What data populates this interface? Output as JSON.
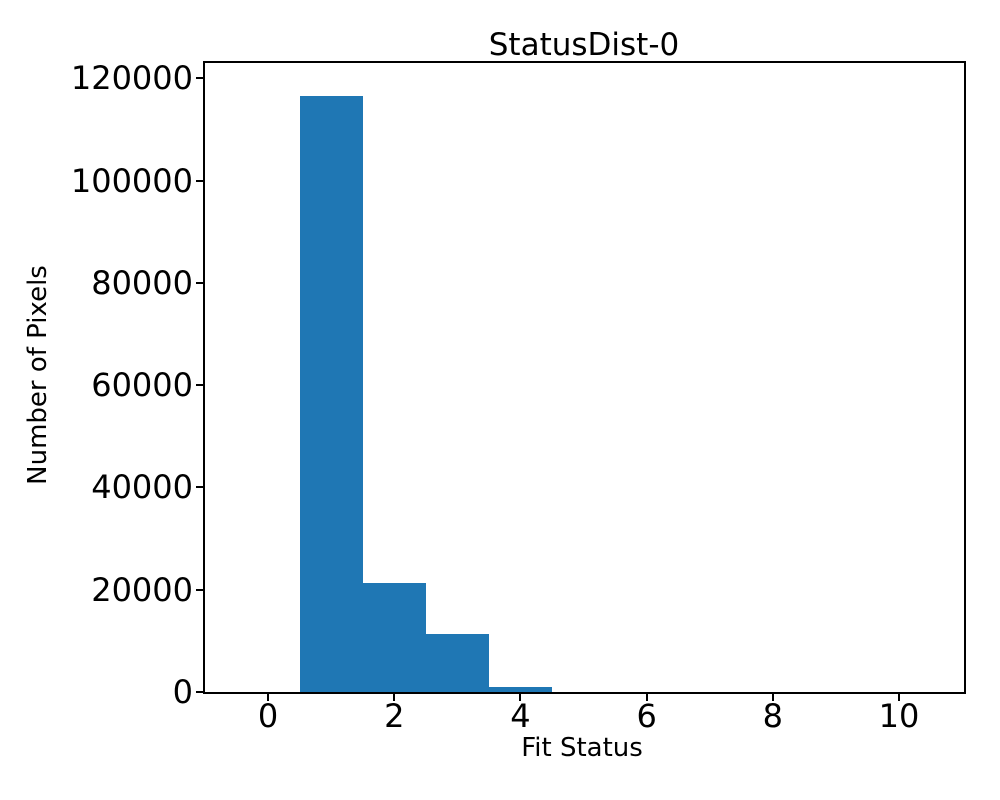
{
  "figure": {
    "background": "#ffffff",
    "axis_color": "#000000",
    "text_color": "#000000"
  },
  "chart_data": {
    "type": "bar",
    "title": "StatusDist-0",
    "xlabel": "Fit Status",
    "ylabel": "Number of Pixels",
    "bar_color": "#1f77b4",
    "bin_edges": [
      0.5,
      1.5,
      2.5,
      3.5,
      4.5
    ],
    "counts": [
      116500,
      21300,
      11300,
      1000
    ],
    "x_ticks": [
      0,
      2,
      4,
      6,
      8,
      10
    ],
    "y_ticks": [
      0,
      20000,
      40000,
      60000,
      80000,
      100000,
      120000
    ],
    "xlim": [
      -1.0,
      11.03
    ],
    "ylim": [
      0,
      123000
    ],
    "grid": false,
    "legend": null
  }
}
